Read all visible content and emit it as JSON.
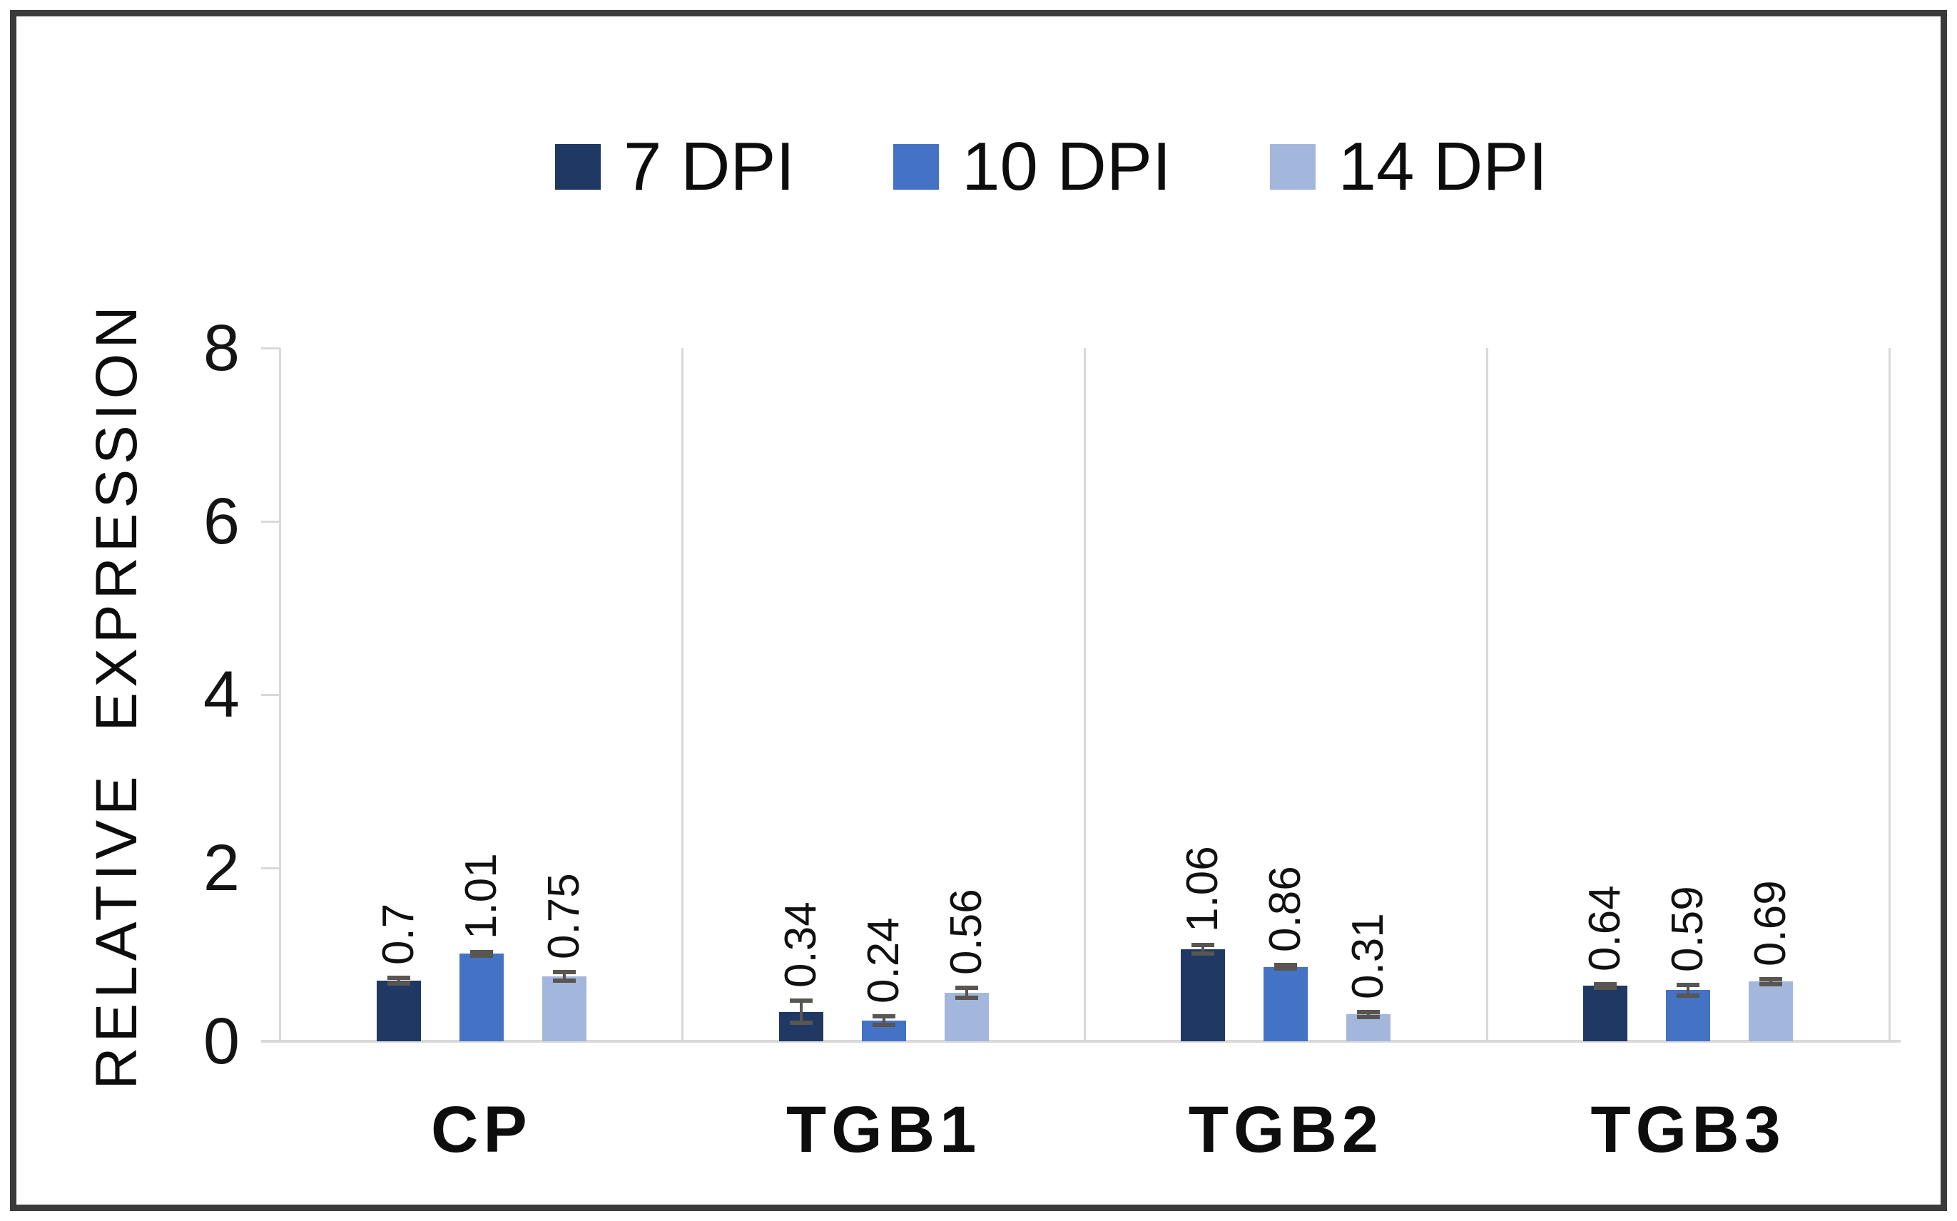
{
  "figure": {
    "background": "#ffffff",
    "border_color": "#3b3b3b"
  },
  "legend": {
    "position": "top-center",
    "items": [
      {
        "label": "7 DPI",
        "color": "#1F3864"
      },
      {
        "label": "10 DPI",
        "color": "#4472C4"
      },
      {
        "label": "14 DPI",
        "color": "#A3B7DC"
      }
    ]
  },
  "chart_data": {
    "type": "bar",
    "title": "",
    "categories": [
      "CP",
      "TGB1",
      "TGB2",
      "TGB3"
    ],
    "series": [
      {
        "name": "7 DPI",
        "color": "#1F3864",
        "values": [
          0.7,
          0.34,
          1.06,
          0.64
        ],
        "errors": [
          0.03,
          0.13,
          0.05,
          0.02
        ],
        "data_labels": [
          "0.7",
          "0.34",
          "1.06",
          "0.64"
        ]
      },
      {
        "name": "10 DPI",
        "color": "#4472C4",
        "values": [
          1.01,
          0.24,
          0.86,
          0.59
        ],
        "errors": [
          0.02,
          0.05,
          0.02,
          0.06
        ],
        "data_labels": [
          "1.01",
          "0.24",
          "0.86",
          "0.59"
        ]
      },
      {
        "name": "14 DPI",
        "color": "#A3B7DC",
        "values": [
          0.75,
          0.56,
          0.31,
          0.69
        ],
        "errors": [
          0.05,
          0.06,
          0.03,
          0.03
        ],
        "data_labels": [
          "0.75",
          "0.56",
          "0.31",
          "0.69"
        ]
      }
    ],
    "xlabel": "",
    "ylabel": "RELATIVE EXPRESSION",
    "ylim": [
      0,
      8
    ],
    "yticks": [
      "0",
      "2",
      "4",
      "6",
      "8"
    ],
    "grid": "vertical category separator lines",
    "legend_position": "top-center",
    "error_bars": true,
    "error_bar_color": "#595551",
    "gridline_color": "#d9d9d9",
    "data_label_rotation": 90
  }
}
